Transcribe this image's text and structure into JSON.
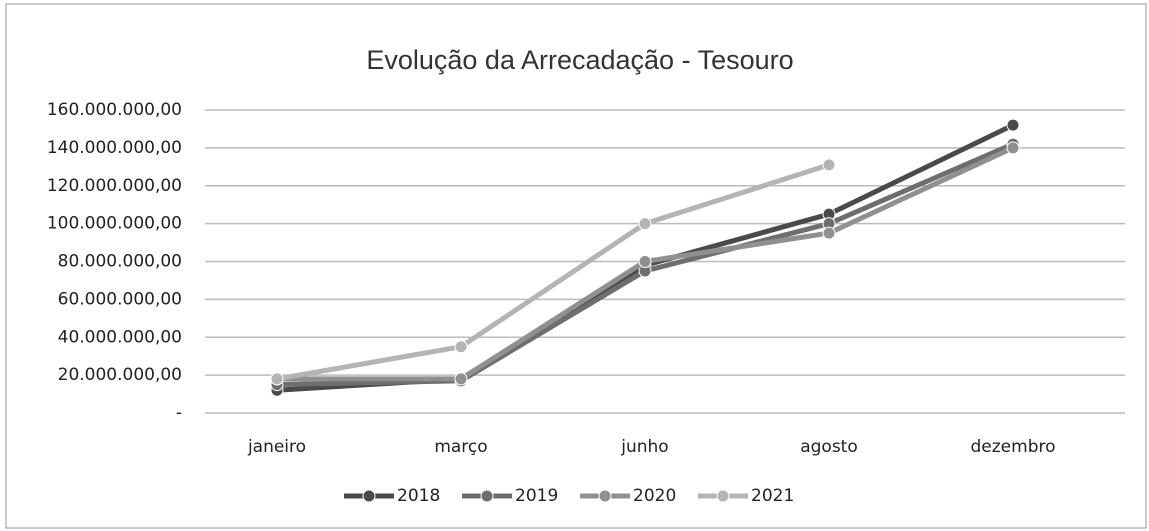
{
  "chart_data": {
    "type": "line",
    "title": "Evolução da Arrecadação - Tesouro",
    "categories": [
      "janeiro",
      "março",
      "junho",
      "agosto",
      "dezembro"
    ],
    "series": [
      {
        "name": "2018",
        "color": "#4a4a4a",
        "values": [
          12000000,
          18000000,
          78000000,
          105000000,
          152000000
        ]
      },
      {
        "name": "2019",
        "color": "#6e6e6e",
        "values": [
          15000000,
          17000000,
          75000000,
          100000000,
          142000000
        ]
      },
      {
        "name": "2020",
        "color": "#909090",
        "values": [
          18000000,
          18000000,
          80000000,
          95000000,
          140000000
        ]
      },
      {
        "name": "2021",
        "color": "#b4b4b4",
        "values": [
          18000000,
          35000000,
          100000000,
          131000000,
          null
        ]
      }
    ],
    "ylim": [
      0,
      160000000
    ],
    "yticks": [
      {
        "value": 0,
        "label": "-"
      },
      {
        "value": 20000000,
        "label": "20.000.000,00"
      },
      {
        "value": 40000000,
        "label": "40.000.000,00"
      },
      {
        "value": 60000000,
        "label": "60.000.000,00"
      },
      {
        "value": 80000000,
        "label": "80.000.000,00"
      },
      {
        "value": 100000000,
        "label": "100.000.000,00"
      },
      {
        "value": 120000000,
        "label": "120.000.000,00"
      },
      {
        "value": 140000000,
        "label": "140.000.000,00"
      },
      {
        "value": 160000000,
        "label": "160.000.000,00"
      }
    ],
    "grid": true,
    "legend": "bottom"
  }
}
